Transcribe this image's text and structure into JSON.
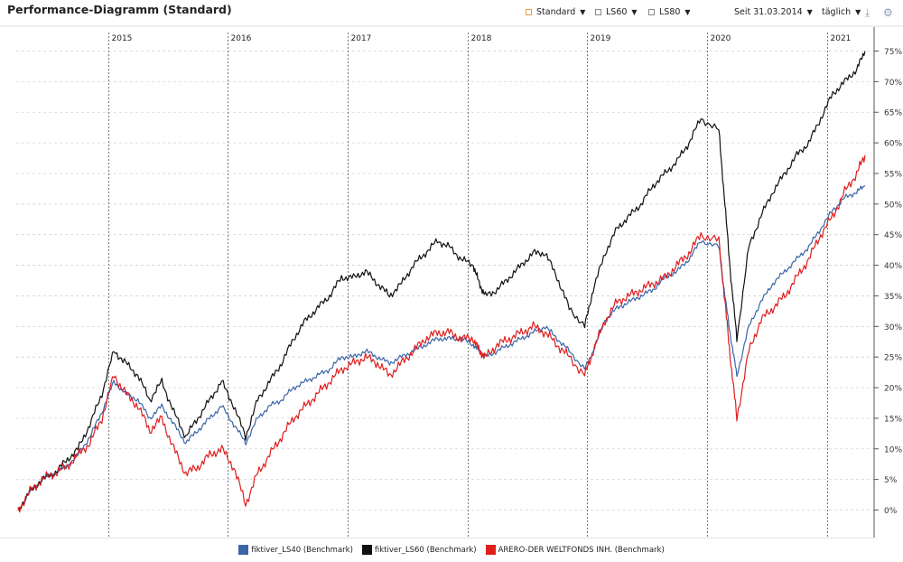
{
  "header": {
    "title": "Performance-Diagramm (Standard)"
  },
  "toolbar": {
    "standard_label": "Standard",
    "ls60_label": "LS60",
    "ls80_label": "LS80",
    "period_label": "Seit 31.03.2014",
    "frequency_label": "täglich"
  },
  "colors": {
    "ls40": "#3a66a8",
    "ls60": "#111111",
    "arero": "#e01e1e",
    "standard_accent": "#e8a23a"
  },
  "chart_data": {
    "type": "line",
    "title": "Performance-Diagramm (Standard)",
    "xlabel": "",
    "ylabel": "",
    "x_range": [
      2014.25,
      2021.32
    ],
    "ylim": [
      -5,
      77
    ],
    "y_ticks": [
      0,
      5,
      10,
      15,
      20,
      25,
      30,
      35,
      40,
      45,
      50,
      55,
      60,
      65,
      70,
      75
    ],
    "y_tick_labels": [
      "0%",
      "5%",
      "10%",
      "15%",
      "20%",
      "25%",
      "30%",
      "35%",
      "40%",
      "45%",
      "50%",
      "55%",
      "60%",
      "65%",
      "70%",
      "75%"
    ],
    "year_markers": [
      {
        "label": "2015",
        "x": 2015.0
      },
      {
        "label": "2016",
        "x": 2016.0
      },
      {
        "label": "2017",
        "x": 2017.0
      },
      {
        "label": "2018",
        "x": 2018.0
      },
      {
        "label": "2019",
        "x": 2019.0
      },
      {
        "label": "2020",
        "x": 2020.0
      },
      {
        "label": "2021",
        "x": 2021.0
      }
    ],
    "x": [
      2014.25,
      2014.35,
      2014.45,
      2014.55,
      2014.65,
      2014.75,
      2014.85,
      2014.95,
      2015.05,
      2015.15,
      2015.25,
      2015.35,
      2015.45,
      2015.55,
      2015.65,
      2015.75,
      2015.85,
      2015.95,
      2016.05,
      2016.15,
      2016.25,
      2016.35,
      2016.45,
      2016.55,
      2016.65,
      2016.75,
      2016.85,
      2016.95,
      2017.05,
      2017.15,
      2017.25,
      2017.35,
      2017.45,
      2017.55,
      2017.65,
      2017.75,
      2017.85,
      2017.95,
      2018.05,
      2018.1,
      2018.15,
      2018.25,
      2018.35,
      2018.45,
      2018.55,
      2018.65,
      2018.75,
      2018.85,
      2018.98,
      2019.05,
      2019.15,
      2019.25,
      2019.35,
      2019.45,
      2019.55,
      2019.65,
      2019.75,
      2019.85,
      2019.95,
      2020.1,
      2020.15,
      2020.2,
      2020.25,
      2020.35,
      2020.45,
      2020.55,
      2020.65,
      2020.75,
      2020.85,
      2020.95,
      2021.05,
      2021.15,
      2021.25,
      2021.32
    ],
    "series": [
      {
        "name": "fiktiver_LS40 (Benchmark)",
        "values": [
          0,
          3,
          5,
          6,
          7,
          9,
          12,
          16,
          21,
          19,
          18,
          15,
          17,
          14,
          11,
          13,
          15,
          17,
          14,
          11,
          15,
          17,
          18,
          20,
          21,
          22,
          23,
          25,
          25,
          26,
          25,
          24,
          25,
          26,
          27,
          28,
          28,
          28,
          27,
          26,
          25,
          26,
          27,
          28,
          29,
          30,
          28,
          26,
          23,
          26,
          31,
          33,
          34,
          35,
          36,
          38,
          39,
          41,
          44,
          43,
          35,
          28,
          22,
          30,
          34,
          37,
          39,
          41,
          43,
          46,
          49,
          51,
          52,
          53
        ]
      },
      {
        "name": "fiktiver_LS60 (Benchmark)",
        "values": [
          0,
          3,
          5,
          6,
          8,
          10,
          14,
          19,
          26,
          24,
          22,
          18,
          21,
          16,
          12,
          15,
          18,
          21,
          17,
          12,
          18,
          21,
          24,
          28,
          31,
          33,
          35,
          38,
          38,
          39,
          37,
          35,
          37,
          40,
          42,
          44,
          43,
          41,
          40,
          37,
          35,
          36,
          38,
          40,
          42,
          42,
          38,
          33,
          30,
          36,
          42,
          46,
          48,
          50,
          53,
          55,
          57,
          60,
          64,
          62,
          50,
          38,
          28,
          43,
          48,
          52,
          55,
          58,
          60,
          64,
          68,
          70,
          72,
          75
        ]
      },
      {
        "name": "ARERO-DER WELTFONDS INH. (Benchmark)",
        "values": [
          0,
          3,
          5,
          6,
          7,
          9,
          11,
          15,
          22,
          19,
          17,
          13,
          15,
          10,
          6,
          7,
          9,
          10,
          7,
          1,
          6,
          9,
          12,
          15,
          17,
          19,
          21,
          23,
          24,
          25,
          24,
          22,
          24,
          26,
          28,
          29,
          29,
          28,
          28,
          26,
          25,
          27,
          28,
          29,
          30,
          29,
          27,
          25,
          22,
          26,
          31,
          34,
          35,
          36,
          37,
          38,
          40,
          42,
          45,
          44,
          34,
          24,
          15,
          26,
          31,
          33,
          35,
          38,
          41,
          45,
          48,
          52,
          55,
          58
        ]
      }
    ],
    "legend": [
      "fiktiver_LS40 (Benchmark)",
      "fiktiver_LS60 (Benchmark)",
      "ARERO-DER WELTFONDS INH. (Benchmark)"
    ],
    "legend_position": "bottom-center",
    "grid": true
  }
}
